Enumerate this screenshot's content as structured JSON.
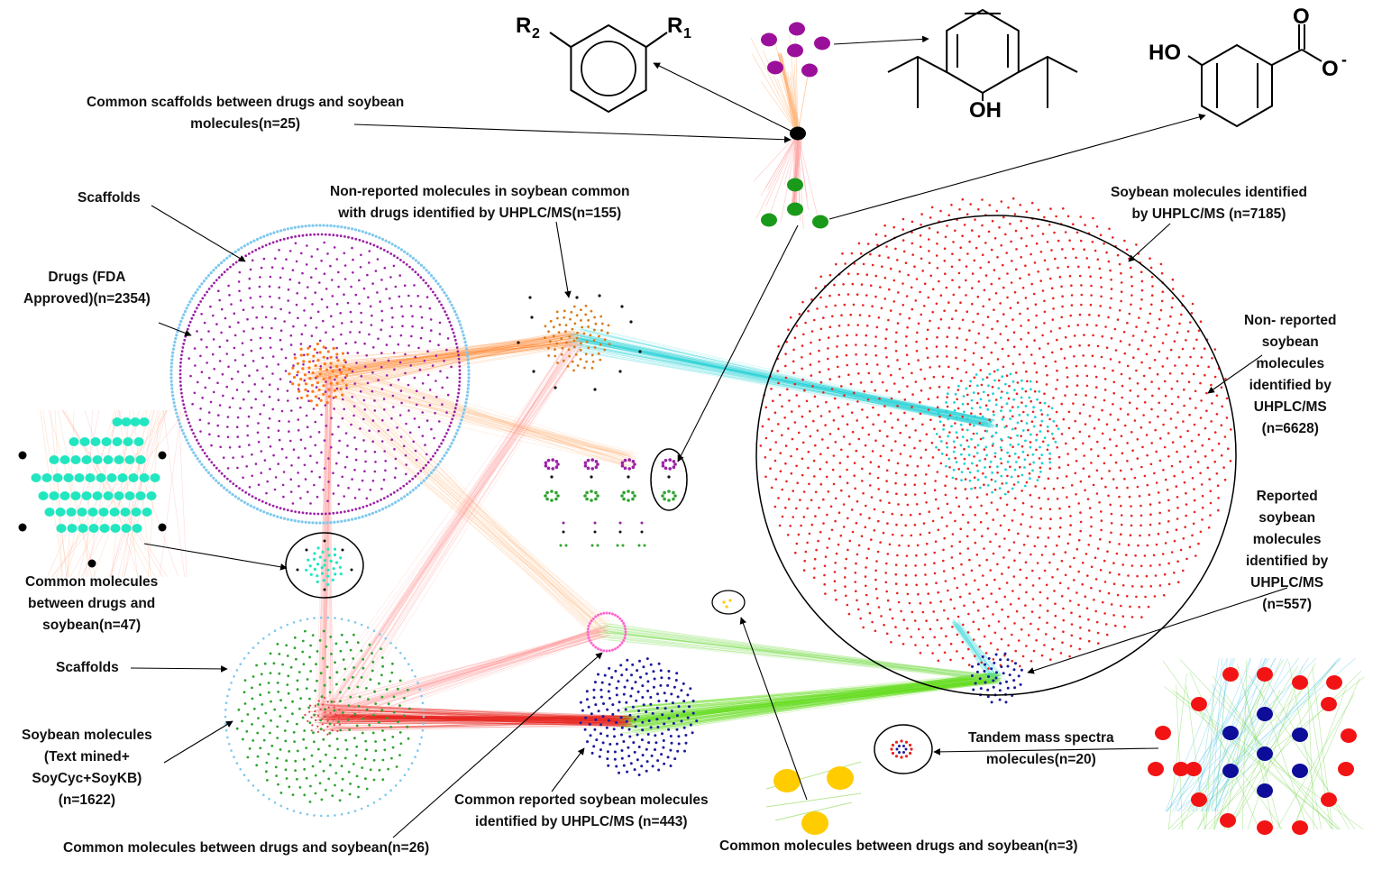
{
  "labels": {
    "common_scaffolds": "Common scaffolds between drugs and soybean molecules(n=25)",
    "common_scaffolds_l1": "Common scaffolds between drugs and soybean",
    "common_scaffolds_l2": "molecules(n=25)",
    "scaffolds_top": "Scaffolds",
    "drugs_l1": "Drugs (FDA",
    "drugs_l2": "Approved)(n=2354)",
    "nonreported_common_l1": "Non-reported molecules in soybean common",
    "nonreported_common_l2": "with drugs identified by UHPLC/MS(n=155)",
    "soy_uhplc_l1": "Soybean molecules identified",
    "soy_uhplc_l2": "by UHPLC/MS (n=7185)",
    "nonrep_soy_l1": "Non- reported",
    "nonrep_soy_l2": "soybean",
    "nonrep_soy_l3": "molecules",
    "nonrep_soy_l4": "identified by",
    "nonrep_soy_l5": "UHPLC/MS",
    "nonrep_soy_l6": "(n=6628)",
    "rep_soy_l1": "Reported",
    "rep_soy_l2": "soybean",
    "rep_soy_l3": "molecules",
    "rep_soy_l4": "identified by",
    "rep_soy_l5": "UHPLC/MS",
    "rep_soy_l6": "(n=557)",
    "common47_l1": "Common molecules",
    "common47_l2": "between drugs and",
    "common47_l3": "soybean(n=47)",
    "scaffolds_bottom": "Scaffolds",
    "soy_mol_l1": "Soybean molecules",
    "soy_mol_l2": "(Text mined+",
    "soy_mol_l3": "SoyCyc+SoyKB)",
    "soy_mol_l4": "(n=1622)",
    "common_rep_l1": "Common reported soybean molecules",
    "common_rep_l2": "identified by UHPLC/MS (n=443)",
    "tandem_l1": "Tandem mass spectra",
    "tandem_l2": "molecules(n=20)",
    "common26": "Common molecules between drugs and soybean(n=26)",
    "common3": "Common molecules between drugs and soybean(n=3)"
  },
  "chem_text": {
    "r2": "R",
    "r2_sub": "2",
    "r1": "R",
    "r1_sub": "1",
    "oh": "OH",
    "ho": "HO",
    "o_top": "O",
    "o_minus": "O",
    "minus": "-"
  },
  "colors": {
    "drugs": "#9b1fa6",
    "drug_scaffolds": "#7ec8ee",
    "center_orange": "#ff7a1a",
    "soybean_uhplc": "#e8241f",
    "center_cyan": "#22d3d6",
    "reported": "#1a1a9c",
    "soybean_green": "#2ea32e",
    "common47": "#22e6c0",
    "pink": "#ff66cc",
    "yellow": "#ffcc00",
    "scaffold_black": "#000000"
  }
}
